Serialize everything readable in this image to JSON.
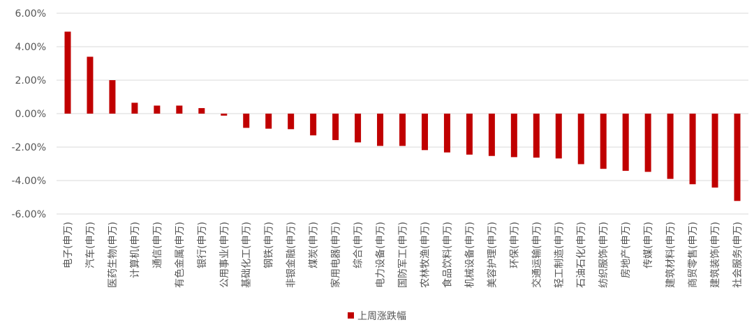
{
  "chart_data": {
    "type": "bar",
    "categories": [
      "电子(申万)",
      "汽车(申万)",
      "医药生物(申万)",
      "计算机(申万)",
      "通信(申万)",
      "有色金属(申万)",
      "银行(申万)",
      "公用事业(申万)",
      "基础化工(申万)",
      "钢铁(申万)",
      "非银金融(申万)",
      "煤炭(申万)",
      "家用电器(申万)",
      "综合(申万)",
      "电力设备(申万)",
      "国防军工(申万)",
      "农林牧渔(申万)",
      "食品饮料(申万)",
      "机械设备(申万)",
      "美容护理(申万)",
      "环保(申万)",
      "交通运输(申万)",
      "轻工制造(申万)",
      "石油石化(申万)",
      "纺织服饰(申万)",
      "房地产(申万)",
      "传媒(申万)",
      "建筑材料(申万)",
      "商贸零售(申万)",
      "建筑装饰(申万)",
      "社会服务(申万)"
    ],
    "series": [
      {
        "name": "上周涨跌幅",
        "values": [
          4.9,
          3.4,
          2.0,
          0.65,
          0.48,
          0.48,
          0.33,
          -0.12,
          -0.85,
          -0.9,
          -0.93,
          -1.3,
          -1.58,
          -1.72,
          -1.93,
          -1.93,
          -2.18,
          -2.32,
          -2.45,
          -2.53,
          -2.6,
          -2.63,
          -2.68,
          -3.02,
          -3.3,
          -3.42,
          -3.48,
          -3.9,
          -4.22,
          -4.42,
          -5.22
        ]
      }
    ],
    "ylim": [
      -6,
      6
    ],
    "yticks": [
      "6.00%",
      "4.00%",
      "2.00%",
      "0.00%",
      "-2.00%",
      "-4.00%",
      "-6.00%"
    ],
    "grid": true,
    "legend_position": "bottom",
    "colors": {
      "bar": "#c00000",
      "grid": "#d9d9d9",
      "text": "#555555"
    }
  }
}
